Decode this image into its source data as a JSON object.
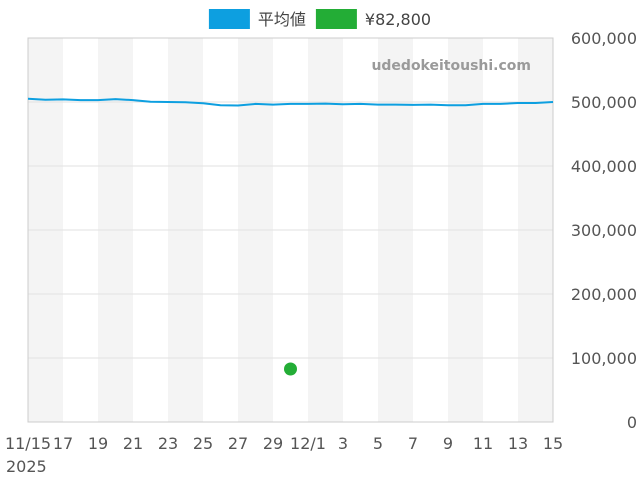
{
  "watermark": "udedokeitoushi.com",
  "legend": [
    {
      "label": "平均値",
      "color": "#0d9fe0"
    },
    {
      "label": "¥82,800",
      "color": "#23ad36"
    }
  ],
  "chart_data": {
    "type": "line",
    "x_axis": {
      "start": "2025-11-15",
      "end": "2025-12-15",
      "ticks": [
        {
          "date": "2025-11-15",
          "label": "11/15",
          "sublabel": "2025"
        },
        {
          "date": "2025-11-17",
          "label": "17"
        },
        {
          "date": "2025-11-19",
          "label": "19"
        },
        {
          "date": "2025-11-21",
          "label": "21"
        },
        {
          "date": "2025-11-23",
          "label": "23"
        },
        {
          "date": "2025-11-25",
          "label": "25"
        },
        {
          "date": "2025-11-27",
          "label": "27"
        },
        {
          "date": "2025-11-29",
          "label": "29"
        },
        {
          "date": "2025-12-01",
          "label": "12/1"
        },
        {
          "date": "2025-12-03",
          "label": "3"
        },
        {
          "date": "2025-12-05",
          "label": "5"
        },
        {
          "date": "2025-12-07",
          "label": "7"
        },
        {
          "date": "2025-12-09",
          "label": "9"
        },
        {
          "date": "2025-12-11",
          "label": "11"
        },
        {
          "date": "2025-12-13",
          "label": "13"
        },
        {
          "date": "2025-12-15",
          "label": "15"
        }
      ]
    },
    "y_axis": {
      "position": "right",
      "ylim": [
        0,
        600000
      ],
      "ticks": [
        {
          "value": 0,
          "label": "0"
        },
        {
          "value": 100000,
          "label": "100,000"
        },
        {
          "value": 200000,
          "label": "200,000"
        },
        {
          "value": 300000,
          "label": "300,000"
        },
        {
          "value": 400000,
          "label": "400,000"
        },
        {
          "value": 500000,
          "label": "500,000"
        },
        {
          "value": 600000,
          "label": "600,000"
        }
      ]
    },
    "grid": true,
    "legend_position": "top",
    "series": [
      {
        "name": "平均値",
        "type": "line",
        "color": "#0d9fe0",
        "points": [
          {
            "x": "2025-11-15",
            "y": 505000
          },
          {
            "x": "2025-11-16",
            "y": 503500
          },
          {
            "x": "2025-11-17",
            "y": 504000
          },
          {
            "x": "2025-11-18",
            "y": 503000
          },
          {
            "x": "2025-11-19",
            "y": 503000
          },
          {
            "x": "2025-11-20",
            "y": 504500
          },
          {
            "x": "2025-11-21",
            "y": 503000
          },
          {
            "x": "2025-11-22",
            "y": 500500
          },
          {
            "x": "2025-11-23",
            "y": 500000
          },
          {
            "x": "2025-11-24",
            "y": 499500
          },
          {
            "x": "2025-11-25",
            "y": 498000
          },
          {
            "x": "2025-11-26",
            "y": 495000
          },
          {
            "x": "2025-11-27",
            "y": 494500
          },
          {
            "x": "2025-11-28",
            "y": 497000
          },
          {
            "x": "2025-11-29",
            "y": 496000
          },
          {
            "x": "2025-11-30",
            "y": 497000
          },
          {
            "x": "2025-12-01",
            "y": 497000
          },
          {
            "x": "2025-12-02",
            "y": 497500
          },
          {
            "x": "2025-12-03",
            "y": 496500
          },
          {
            "x": "2025-12-04",
            "y": 497000
          },
          {
            "x": "2025-12-05",
            "y": 496000
          },
          {
            "x": "2025-12-06",
            "y": 496000
          },
          {
            "x": "2025-12-07",
            "y": 495500
          },
          {
            "x": "2025-12-08",
            "y": 496000
          },
          {
            "x": "2025-12-09",
            "y": 495000
          },
          {
            "x": "2025-12-10",
            "y": 495000
          },
          {
            "x": "2025-12-11",
            "y": 497000
          },
          {
            "x": "2025-12-12",
            "y": 497000
          },
          {
            "x": "2025-12-13",
            "y": 498500
          },
          {
            "x": "2025-12-14",
            "y": 498500
          },
          {
            "x": "2025-12-15",
            "y": 500000
          }
        ]
      },
      {
        "name": "¥82,800",
        "type": "scatter",
        "color": "#23ad36",
        "points": [
          {
            "x": "2025-11-30",
            "y": 82800
          }
        ]
      }
    ]
  }
}
